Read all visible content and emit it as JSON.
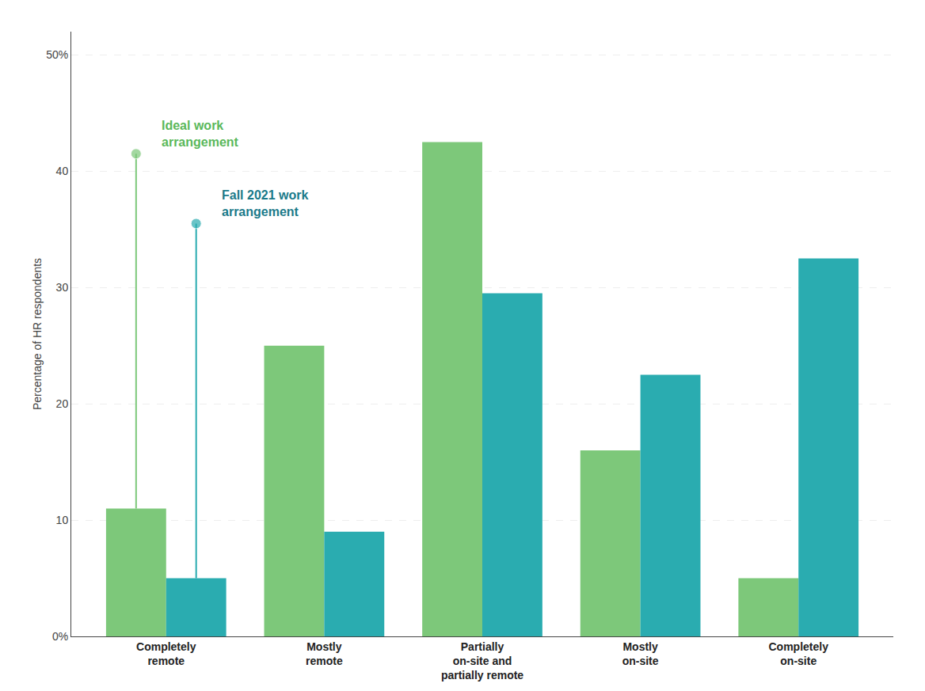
{
  "chart_data": {
    "type": "bar",
    "categories": [
      "Completely\nremote",
      "Mostly\nremote",
      "Partially\non-site and\npartially remote",
      "Mostly\non-site",
      "Completely\non-site"
    ],
    "series": [
      {
        "color": "#7dc87a",
        "values": [
          11,
          25,
          42.5,
          16,
          5
        ],
        "annotation": {
          "text": "Ideal work\narrangement",
          "category": "Completely\nremote",
          "y": 41.5,
          "color": "#5ab85a"
        }
      },
      {
        "color": "#2aacb0",
        "values": [
          5,
          9,
          29.5,
          22.5,
          32.5
        ],
        "annotation": {
          "text": "Fall 2021 work\narrangement",
          "category": "Completely\nremote",
          "y": 35.5,
          "color": "#1a7a8a"
        }
      }
    ],
    "ylabel": "Percentage of HR respondents",
    "ylim": [
      0,
      52
    ],
    "yticks": [
      {
        "value": 0,
        "label": "0%"
      },
      10,
      20,
      30,
      40,
      {
        "value": 50,
        "label": "50%"
      }
    ],
    "grid": true
  }
}
